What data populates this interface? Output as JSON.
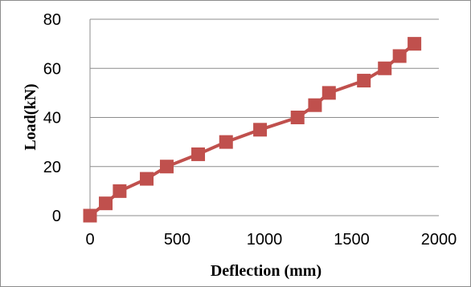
{
  "chart_data": {
    "type": "line",
    "title": "",
    "xlabel": "Deflection (mm)",
    "ylabel": "Load(kN)",
    "xlim": [
      0,
      2000
    ],
    "ylim": [
      0,
      80
    ],
    "xticks": [
      0,
      500,
      1000,
      1500,
      2000
    ],
    "yticks": [
      0,
      20,
      40,
      60,
      80
    ],
    "grid": "horizontal",
    "legend": "none",
    "series": [
      {
        "color": "#C0504D",
        "marker": "square",
        "points": [
          {
            "x": 0,
            "y": 0
          },
          {
            "x": 90,
            "y": 5
          },
          {
            "x": 170,
            "y": 10
          },
          {
            "x": 325,
            "y": 15
          },
          {
            "x": 440,
            "y": 20
          },
          {
            "x": 620,
            "y": 25
          },
          {
            "x": 780,
            "y": 30
          },
          {
            "x": 975,
            "y": 35
          },
          {
            "x": 1190,
            "y": 40
          },
          {
            "x": 1290,
            "y": 45
          },
          {
            "x": 1370,
            "y": 50
          },
          {
            "x": 1570,
            "y": 55
          },
          {
            "x": 1690,
            "y": 60
          },
          {
            "x": 1775,
            "y": 65
          },
          {
            "x": 1860,
            "y": 70
          }
        ]
      }
    ]
  }
}
